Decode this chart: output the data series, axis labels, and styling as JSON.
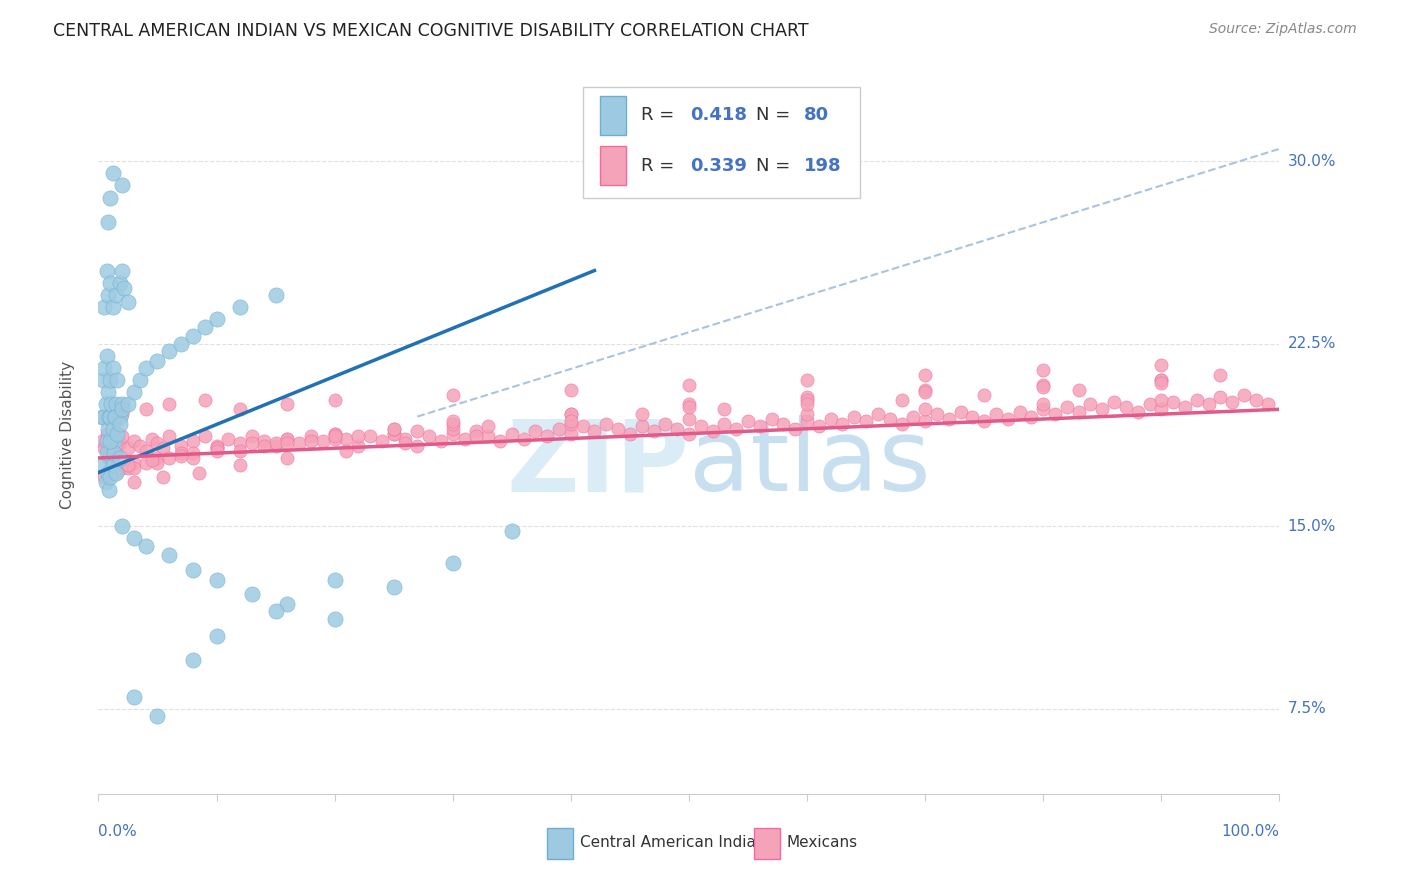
{
  "title": "CENTRAL AMERICAN INDIAN VS MEXICAN COGNITIVE DISABILITY CORRELATION CHART",
  "source": "Source: ZipAtlas.com",
  "ylabel": "Cognitive Disability",
  "y_ticks": [
    0.075,
    0.15,
    0.225,
    0.3
  ],
  "y_tick_labels": [
    "7.5%",
    "15.0%",
    "22.5%",
    "30.0%"
  ],
  "xmin": 0.0,
  "xmax": 1.0,
  "ymin": 0.04,
  "ymax": 0.335,
  "legend_label1": "Central American Indians",
  "legend_label2": "Mexicans",
  "blue_color": "#9ecae1",
  "pink_color": "#f4a3b8",
  "blue_edge_color": "#6baed6",
  "pink_edge_color": "#f768a1",
  "blue_line_color": "#2171b5",
  "pink_line_color": "#e05a8a",
  "dashed_line_color": "#aac4dd",
  "watermark_zip_color": "#daedf7",
  "watermark_atlas_color": "#c8dff0",
  "background_color": "#ffffff",
  "grid_color": "#e0e0e0",
  "title_color": "#222222",
  "axis_label_color": "#4472c4",
  "legend_r_color": "#4472c4",
  "legend_n_color": "#4472c4",
  "blue_line": {
    "x0": 0.0,
    "y0": 0.172,
    "x1": 0.42,
    "y1": 0.255
  },
  "pink_line": {
    "x0": 0.0,
    "y0": 0.178,
    "x1": 1.0,
    "y1": 0.198
  },
  "dashed_line": {
    "x0": 0.27,
    "y0": 0.195,
    "x1": 1.0,
    "y1": 0.305
  },
  "blue_scatter_x": [
    0.003,
    0.004,
    0.005,
    0.005,
    0.006,
    0.007,
    0.007,
    0.008,
    0.008,
    0.009,
    0.01,
    0.01,
    0.011,
    0.012,
    0.013,
    0.014,
    0.015,
    0.016,
    0.018,
    0.02,
    0.005,
    0.007,
    0.008,
    0.01,
    0.012,
    0.015,
    0.018,
    0.02,
    0.022,
    0.025,
    0.005,
    0.006,
    0.007,
    0.008,
    0.009,
    0.01,
    0.012,
    0.013,
    0.015,
    0.018,
    0.01,
    0.012,
    0.014,
    0.016,
    0.018,
    0.02,
    0.025,
    0.03,
    0.035,
    0.04,
    0.05,
    0.06,
    0.07,
    0.08,
    0.09,
    0.1,
    0.12,
    0.15,
    0.02,
    0.03,
    0.04,
    0.06,
    0.08,
    0.1,
    0.13,
    0.16,
    0.2,
    0.25,
    0.3,
    0.35,
    0.03,
    0.05,
    0.08,
    0.1,
    0.15,
    0.2,
    0.01,
    0.02,
    0.008,
    0.012
  ],
  "blue_scatter_y": [
    0.195,
    0.21,
    0.195,
    0.215,
    0.2,
    0.185,
    0.22,
    0.19,
    0.205,
    0.195,
    0.195,
    0.21,
    0.2,
    0.215,
    0.185,
    0.195,
    0.2,
    0.21,
    0.195,
    0.2,
    0.24,
    0.255,
    0.245,
    0.25,
    0.24,
    0.245,
    0.25,
    0.255,
    0.248,
    0.242,
    0.175,
    0.168,
    0.18,
    0.172,
    0.165,
    0.17,
    0.175,
    0.18,
    0.172,
    0.178,
    0.185,
    0.19,
    0.195,
    0.188,
    0.192,
    0.198,
    0.2,
    0.205,
    0.21,
    0.215,
    0.218,
    0.222,
    0.225,
    0.228,
    0.232,
    0.235,
    0.24,
    0.245,
    0.15,
    0.145,
    0.142,
    0.138,
    0.132,
    0.128,
    0.122,
    0.118,
    0.112,
    0.125,
    0.135,
    0.148,
    0.08,
    0.072,
    0.095,
    0.105,
    0.115,
    0.128,
    0.285,
    0.29,
    0.275,
    0.295
  ],
  "pink_scatter_x": [
    0.003,
    0.005,
    0.007,
    0.008,
    0.01,
    0.012,
    0.015,
    0.018,
    0.02,
    0.025,
    0.03,
    0.035,
    0.04,
    0.045,
    0.05,
    0.055,
    0.06,
    0.07,
    0.08,
    0.09,
    0.1,
    0.11,
    0.12,
    0.13,
    0.14,
    0.15,
    0.16,
    0.17,
    0.18,
    0.19,
    0.2,
    0.21,
    0.22,
    0.23,
    0.24,
    0.25,
    0.26,
    0.27,
    0.28,
    0.29,
    0.3,
    0.31,
    0.32,
    0.33,
    0.34,
    0.35,
    0.36,
    0.37,
    0.38,
    0.39,
    0.4,
    0.41,
    0.42,
    0.43,
    0.44,
    0.45,
    0.46,
    0.47,
    0.48,
    0.49,
    0.5,
    0.51,
    0.52,
    0.53,
    0.54,
    0.55,
    0.56,
    0.57,
    0.58,
    0.59,
    0.6,
    0.61,
    0.62,
    0.63,
    0.64,
    0.65,
    0.66,
    0.67,
    0.68,
    0.69,
    0.7,
    0.71,
    0.72,
    0.73,
    0.74,
    0.75,
    0.76,
    0.77,
    0.78,
    0.79,
    0.8,
    0.81,
    0.82,
    0.83,
    0.84,
    0.85,
    0.86,
    0.87,
    0.88,
    0.89,
    0.9,
    0.91,
    0.92,
    0.93,
    0.94,
    0.95,
    0.96,
    0.97,
    0.98,
    0.99,
    0.008,
    0.012,
    0.02,
    0.03,
    0.05,
    0.07,
    0.1,
    0.15,
    0.2,
    0.25,
    0.3,
    0.4,
    0.5,
    0.6,
    0.7,
    0.8,
    0.9,
    0.01,
    0.025,
    0.04,
    0.06,
    0.08,
    0.1,
    0.13,
    0.16,
    0.2,
    0.25,
    0.3,
    0.4,
    0.5,
    0.6,
    0.7,
    0.8,
    0.9,
    0.005,
    0.015,
    0.03,
    0.05,
    0.08,
    0.12,
    0.16,
    0.2,
    0.25,
    0.3,
    0.4,
    0.5,
    0.6,
    0.7,
    0.8,
    0.9,
    0.02,
    0.04,
    0.06,
    0.09,
    0.12,
    0.16,
    0.2,
    0.3,
    0.4,
    0.5,
    0.6,
    0.7,
    0.8,
    0.9,
    0.025,
    0.045,
    0.07,
    0.1,
    0.14,
    0.18,
    0.22,
    0.27,
    0.33,
    0.4,
    0.46,
    0.53,
    0.6,
    0.68,
    0.75,
    0.83,
    0.9,
    0.95,
    0.03,
    0.055,
    0.085,
    0.12,
    0.16,
    0.21,
    0.26,
    0.32
  ],
  "pink_scatter_y": [
    0.185,
    0.182,
    0.188,
    0.179,
    0.183,
    0.186,
    0.18,
    0.184,
    0.187,
    0.182,
    0.185,
    0.183,
    0.181,
    0.186,
    0.184,
    0.182,
    0.187,
    0.183,
    0.185,
    0.187,
    0.183,
    0.186,
    0.184,
    0.187,
    0.185,
    0.183,
    0.186,
    0.184,
    0.187,
    0.185,
    0.188,
    0.186,
    0.183,
    0.187,
    0.185,
    0.188,
    0.186,
    0.183,
    0.187,
    0.185,
    0.188,
    0.186,
    0.189,
    0.187,
    0.185,
    0.188,
    0.186,
    0.189,
    0.187,
    0.19,
    0.188,
    0.191,
    0.189,
    0.192,
    0.19,
    0.188,
    0.191,
    0.189,
    0.192,
    0.19,
    0.188,
    0.191,
    0.189,
    0.192,
    0.19,
    0.193,
    0.191,
    0.194,
    0.192,
    0.19,
    0.193,
    0.191,
    0.194,
    0.192,
    0.195,
    0.193,
    0.196,
    0.194,
    0.192,
    0.195,
    0.193,
    0.196,
    0.194,
    0.197,
    0.195,
    0.193,
    0.196,
    0.194,
    0.197,
    0.195,
    0.198,
    0.196,
    0.199,
    0.197,
    0.2,
    0.198,
    0.201,
    0.199,
    0.197,
    0.2,
    0.198,
    0.201,
    0.199,
    0.202,
    0.2,
    0.203,
    0.201,
    0.204,
    0.202,
    0.2,
    0.178,
    0.176,
    0.174,
    0.176,
    0.178,
    0.18,
    0.182,
    0.184,
    0.186,
    0.188,
    0.19,
    0.192,
    0.194,
    0.196,
    0.198,
    0.2,
    0.202,
    0.172,
    0.174,
    0.176,
    0.178,
    0.18,
    0.182,
    0.184,
    0.186,
    0.188,
    0.19,
    0.192,
    0.196,
    0.2,
    0.203,
    0.206,
    0.208,
    0.21,
    0.17,
    0.172,
    0.174,
    0.176,
    0.178,
    0.181,
    0.184,
    0.187,
    0.19,
    0.193,
    0.196,
    0.199,
    0.202,
    0.205,
    0.207,
    0.21,
    0.196,
    0.198,
    0.2,
    0.202,
    0.198,
    0.2,
    0.202,
    0.204,
    0.206,
    0.208,
    0.21,
    0.212,
    0.214,
    0.216,
    0.175,
    0.177,
    0.179,
    0.181,
    0.183,
    0.185,
    0.187,
    0.189,
    0.191,
    0.193,
    0.196,
    0.198,
    0.2,
    0.202,
    0.204,
    0.206,
    0.209,
    0.212,
    0.168,
    0.17,
    0.172,
    0.175,
    0.178,
    0.181,
    0.184,
    0.187
  ]
}
